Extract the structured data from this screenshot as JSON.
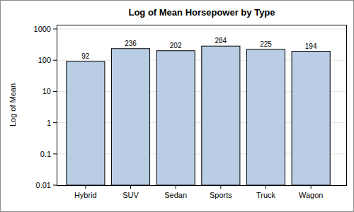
{
  "chart_data": {
    "type": "bar",
    "title": "Log of Mean Horsepower by Type",
    "y_label": "Log of Mean",
    "categories": [
      "Hybrid",
      "SUV",
      "Sedan",
      "Sports",
      "Truck",
      "Wagon"
    ],
    "values": [
      92,
      236,
      202,
      284,
      225,
      194
    ],
    "color": "#b9cde4",
    "log": "y",
    "ylim": [
      0.01,
      1370
    ],
    "yticks": [
      0.01,
      0.1,
      1,
      10,
      100,
      1000
    ],
    "grid": true,
    "data_labels": true
  }
}
